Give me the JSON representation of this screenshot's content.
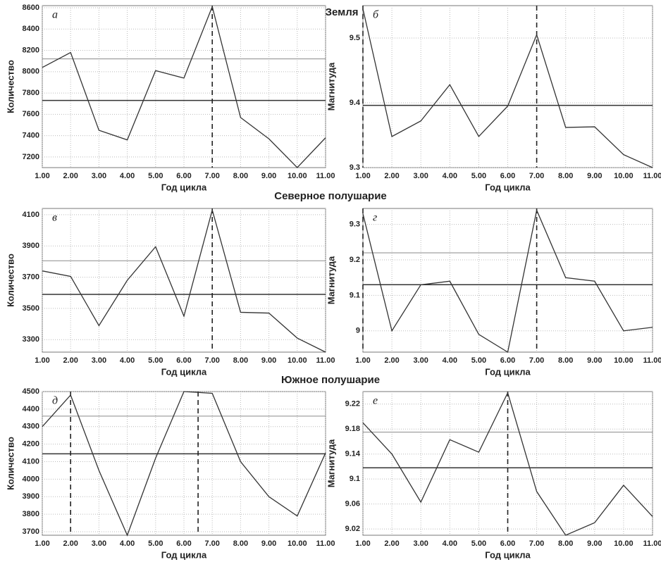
{
  "sections": [
    "Вся Земля",
    "Северное полушарие",
    "Южное полушарие"
  ],
  "chart_data": [
    {
      "type": "line",
      "annotation": "а",
      "xlabel": "Год цикла",
      "ylabel": "Количество",
      "x": [
        1,
        2,
        3,
        4,
        5,
        6,
        7,
        8,
        9,
        10,
        11
      ],
      "xlim": [
        1,
        11
      ],
      "xticks": [
        {
          "value": 1,
          "label": "1.00"
        },
        {
          "value": 2,
          "label": "2.00"
        },
        {
          "value": 3,
          "label": "3.00"
        },
        {
          "value": 4,
          "label": "4.00"
        },
        {
          "value": 5,
          "label": "5.00"
        },
        {
          "value": 6,
          "label": "6.00"
        },
        {
          "value": 7,
          "label": "7.00"
        },
        {
          "value": 8,
          "label": "8.00"
        },
        {
          "value": 9,
          "label": "9.00"
        },
        {
          "value": 10,
          "label": "10.00"
        },
        {
          "value": 11,
          "label": "11.00"
        }
      ],
      "ylim": [
        7100,
        8620
      ],
      "yticks": [
        7200,
        7400,
        7600,
        7800,
        8000,
        8200,
        8400,
        8600
      ],
      "values": [
        8040,
        8180,
        7450,
        7360,
        8010,
        7940,
        8610,
        7570,
        7370,
        7100,
        7380
      ],
      "color": "#333333",
      "hlines": [
        7730,
        8120
      ],
      "vlines": [
        7
      ],
      "grid": true
    },
    {
      "type": "line",
      "annotation": "б",
      "xlabel": "Год цикла",
      "ylabel": "Магнитуда",
      "x": [
        1,
        2,
        3,
        4,
        5,
        6,
        7,
        8,
        9,
        10,
        11
      ],
      "xlim": [
        1,
        11
      ],
      "xticks": [
        {
          "value": 1,
          "label": "1.00"
        },
        {
          "value": 2,
          "label": "2.00"
        },
        {
          "value": 3,
          "label": "3.00"
        },
        {
          "value": 4,
          "label": "4.00"
        },
        {
          "value": 5,
          "label": "5.00"
        },
        {
          "value": 6,
          "label": "6.00"
        },
        {
          "value": 7,
          "label": "7.00"
        },
        {
          "value": 8,
          "label": "8.00"
        },
        {
          "value": 9,
          "label": "9.00"
        },
        {
          "value": 10,
          "label": "10.00"
        },
        {
          "value": 11,
          "label": "11.00"
        }
      ],
      "ylim": [
        9.3,
        9.55
      ],
      "yticks": [
        9.3,
        9.4,
        9.5
      ],
      "values": [
        9.545,
        9.348,
        9.372,
        9.428,
        9.348,
        9.395,
        9.505,
        9.362,
        9.363,
        9.32,
        9.3
      ],
      "color": "#333333",
      "hlines": [
        9.396
      ],
      "vlines": [
        1,
        7
      ],
      "grid": true
    },
    {
      "type": "line",
      "annotation": "в",
      "xlabel": "Год цикла",
      "ylabel": "Количество",
      "x": [
        1,
        2,
        3,
        4,
        5,
        6,
        7,
        8,
        9,
        10,
        11
      ],
      "xlim": [
        1,
        11
      ],
      "xticks": [
        {
          "value": 1,
          "label": "1.00"
        },
        {
          "value": 2,
          "label": "2.00"
        },
        {
          "value": 3,
          "label": "3.00"
        },
        {
          "value": 4,
          "label": "4.00"
        },
        {
          "value": 5,
          "label": "5.00"
        },
        {
          "value": 6,
          "label": "6.00"
        },
        {
          "value": 7,
          "label": "7.00"
        },
        {
          "value": 8,
          "label": "8.00"
        },
        {
          "value": 9,
          "label": "9.00"
        },
        {
          "value": 10,
          "label": "10.00"
        },
        {
          "value": 11,
          "label": "11.00"
        }
      ],
      "ylim": [
        3220,
        4140
      ],
      "yticks": [
        3300,
        3500,
        3700,
        3900,
        4100
      ],
      "values": [
        3740,
        3705,
        3390,
        3680,
        3895,
        3450,
        4130,
        3475,
        3470,
        3310,
        3220
      ],
      "color": "#333333",
      "hlines": [
        3590,
        3805
      ],
      "vlines": [
        7
      ],
      "grid": true
    },
    {
      "type": "line",
      "annotation": "г",
      "xlabel": "Год цикла",
      "ylabel": "Магнитуда",
      "x": [
        1,
        2,
        3,
        4,
        5,
        6,
        7,
        8,
        9,
        10,
        11
      ],
      "xlim": [
        1,
        11
      ],
      "xticks": [
        {
          "value": 1,
          "label": "1.00"
        },
        {
          "value": 2,
          "label": "2.00"
        },
        {
          "value": 3,
          "label": "3.00"
        },
        {
          "value": 4,
          "label": "4.00"
        },
        {
          "value": 5,
          "label": "5.00"
        },
        {
          "value": 6,
          "label": "6.00"
        },
        {
          "value": 7,
          "label": "7.00"
        },
        {
          "value": 8,
          "label": "8.00"
        },
        {
          "value": 9,
          "label": "9.00"
        },
        {
          "value": 10,
          "label": "10.00"
        },
        {
          "value": 11,
          "label": "11.00"
        }
      ],
      "ylim": [
        8.94,
        9.345
      ],
      "yticks": [
        9,
        9.1,
        9.2,
        9.3
      ],
      "values": [
        9.33,
        9.0,
        9.13,
        9.14,
        8.99,
        8.94,
        9.34,
        9.15,
        9.14,
        9.0,
        9.01
      ],
      "color": "#333333",
      "hlines": [
        9.13,
        9.22
      ],
      "vlines": [
        1,
        7
      ],
      "grid": true
    },
    {
      "type": "line",
      "annotation": "д",
      "xlabel": "Год цикла",
      "ylabel": "Количество",
      "x": [
        1,
        2,
        3,
        4,
        5,
        6,
        7,
        8,
        9,
        10,
        11
      ],
      "xlim": [
        1,
        11
      ],
      "xticks": [
        {
          "value": 1,
          "label": "1.00"
        },
        {
          "value": 2,
          "label": "2.00"
        },
        {
          "value": 3,
          "label": "3.00"
        },
        {
          "value": 4,
          "label": "4.00"
        },
        {
          "value": 5,
          "label": "5.00"
        },
        {
          "value": 6,
          "label": "6.00"
        },
        {
          "value": 7,
          "label": "7.00"
        },
        {
          "value": 8,
          "label": "8.00"
        },
        {
          "value": 9,
          "label": "9.00"
        },
        {
          "value": 10,
          "label": "10.00"
        },
        {
          "value": 11,
          "label": "11.00"
        }
      ],
      "ylim": [
        3680,
        4500
      ],
      "yticks": [
        3700,
        3800,
        3900,
        4000,
        4100,
        4200,
        4300,
        4400,
        4500
      ],
      "values": [
        4300,
        4480,
        4050,
        3680,
        4120,
        4500,
        4490,
        4100,
        3900,
        3790,
        4150
      ],
      "color": "#333333",
      "hlines": [
        4145,
        4360
      ],
      "vlines": [
        2,
        6.5
      ],
      "grid": true
    },
    {
      "type": "line",
      "annotation": "е",
      "xlabel": "Год цикла",
      "ylabel": "Магнитуда",
      "x": [
        1,
        2,
        3,
        4,
        5,
        6,
        7,
        8,
        9,
        10,
        11
      ],
      "xlim": [
        1,
        11
      ],
      "xticks": [
        {
          "value": 1,
          "label": "1.00"
        },
        {
          "value": 2,
          "label": "2.00"
        },
        {
          "value": 3,
          "label": "3.00"
        },
        {
          "value": 4,
          "label": "4.00"
        },
        {
          "value": 5,
          "label": "5.00"
        },
        {
          "value": 6,
          "label": "6.00"
        },
        {
          "value": 7,
          "label": "7.00"
        },
        {
          "value": 8,
          "label": "8.00"
        },
        {
          "value": 9,
          "label": "9.00"
        },
        {
          "value": 10,
          "label": "10.00"
        },
        {
          "value": 11,
          "label": "11.00"
        }
      ],
      "ylim": [
        9.01,
        9.24
      ],
      "yticks": [
        9.02,
        9.06,
        9.1,
        9.14,
        9.18,
        9.22
      ],
      "values": [
        9.19,
        9.14,
        9.063,
        9.163,
        9.143,
        9.238,
        9.08,
        9.01,
        9.03,
        9.09,
        9.04
      ],
      "color": "#333333",
      "hlines": [
        9.118,
        9.175
      ],
      "vlines": [
        6
      ],
      "grid": true
    }
  ]
}
